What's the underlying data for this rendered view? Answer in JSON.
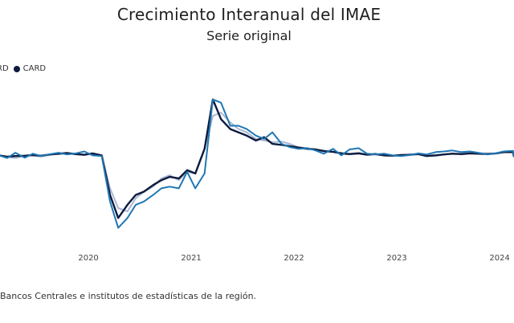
{
  "title": "Crecimiento Interanual del IMAE",
  "subtitle": "Serie original",
  "legend": {
    "items": [
      {
        "label": "RD",
        "color": "#1f77b4"
      },
      {
        "label": "CARD",
        "color": "#0d1b3e"
      }
    ]
  },
  "source": "Bancos Centrales e institutos de estadísticas de la región.",
  "chart_data": {
    "type": "line",
    "title": "Crecimiento Interanual del IMAE",
    "subtitle": "Serie original",
    "xlabel": "",
    "ylabel": "",
    "x_tick_labels": [
      "2020",
      "2021",
      "2022",
      "2023",
      "2024"
    ],
    "x_range": [
      2019.14,
      2024.14
    ],
    "y_range": [
      -22,
      28
    ],
    "grid": false,
    "legend_position": "top-left",
    "series": [
      {
        "name": "",
        "color": "#aab8d4",
        "x": [
          2019.13,
          2019.21,
          2019.29,
          2019.38,
          2019.46,
          2019.54,
          2019.63,
          2019.71,
          2019.79,
          2019.88,
          2019.96,
          2020.04,
          2020.13,
          2020.21,
          2020.29,
          2020.38,
          2020.46,
          2020.54,
          2020.63,
          2020.71,
          2020.79,
          2020.88,
          2020.96,
          2021.04,
          2021.13,
          2021.21,
          2021.29,
          2021.38,
          2021.46,
          2021.54,
          2021.63,
          2021.71,
          2021.79,
          2021.88,
          2021.96,
          2022.04,
          2022.13,
          2022.21,
          2022.29,
          2022.38,
          2022.46,
          2022.54,
          2022.63,
          2022.71,
          2022.79,
          2022.88,
          2022.96,
          2023.04,
          2023.13,
          2023.21,
          2023.29,
          2023.38,
          2023.46,
          2023.54,
          2023.63,
          2023.71,
          2023.79,
          2023.88,
          2023.96,
          2024.04,
          2024.13,
          2024.14
        ],
        "values": [
          4,
          3.5,
          3.2,
          3.8,
          4,
          3.6,
          4.2,
          4.4,
          4.6,
          4.3,
          4.1,
          4.5,
          4.0,
          -6,
          -12,
          -13,
          -9,
          -7,
          -5.5,
          -3,
          -2,
          -3.5,
          -1,
          -1.5,
          6,
          16,
          17,
          14,
          12,
          11,
          9,
          8.5,
          8,
          8.2,
          7.5,
          6.5,
          6.2,
          5.8,
          5.5,
          5,
          4.8,
          4.5,
          4.8,
          4.3,
          4.5,
          4.2,
          4.0,
          4.1,
          4.3,
          4.5,
          4.0,
          4.2,
          4.3,
          4.6,
          4.5,
          4.8,
          4.7,
          4.6,
          4.5,
          4.9,
          5.0,
          3.8
        ]
      },
      {
        "name": "CARD",
        "color": "#0d1b3e",
        "x": [
          2019.13,
          2019.21,
          2019.29,
          2019.38,
          2019.46,
          2019.54,
          2019.63,
          2019.71,
          2019.79,
          2019.88,
          2019.96,
          2020.04,
          2020.13,
          2020.21,
          2020.29,
          2020.38,
          2020.46,
          2020.54,
          2020.63,
          2020.71,
          2020.79,
          2020.88,
          2020.96,
          2021.04,
          2021.13,
          2021.21,
          2021.29,
          2021.38,
          2021.46,
          2021.54,
          2021.63,
          2021.71,
          2021.79,
          2021.88,
          2021.96,
          2022.04,
          2022.13,
          2022.21,
          2022.29,
          2022.38,
          2022.46,
          2022.54,
          2022.63,
          2022.71,
          2022.79,
          2022.88,
          2022.96,
          2023.04,
          2023.13,
          2023.21,
          2023.29,
          2023.38,
          2023.46,
          2023.54,
          2023.63,
          2023.71,
          2023.79,
          2023.88,
          2023.96,
          2024.04,
          2024.13,
          2024.14
        ],
        "values": [
          4,
          3.6,
          3.8,
          3.9,
          4.1,
          3.9,
          4.3,
          4.5,
          4.7,
          4.4,
          4.2,
          4.6,
          4.0,
          -8,
          -15,
          -11,
          -8,
          -7,
          -5,
          -3.5,
          -2.5,
          -3,
          -0.5,
          -1.5,
          6,
          21,
          15,
          12,
          11,
          10,
          8.5,
          9.5,
          7.5,
          7.2,
          6.8,
          6.4,
          6.0,
          5.8,
          5.3,
          5.1,
          4.6,
          4.4,
          4.6,
          4.2,
          4.4,
          4.0,
          3.9,
          4.1,
          4.2,
          4.4,
          3.8,
          4.0,
          4.3,
          4.5,
          4.4,
          4.6,
          4.5,
          4.4,
          4.6,
          5.0,
          5.0,
          3.5
        ]
      },
      {
        "name": "RD",
        "color": "#1f77b4",
        "x": [
          2019.13,
          2019.21,
          2019.29,
          2019.38,
          2019.46,
          2019.54,
          2019.63,
          2019.71,
          2019.79,
          2019.88,
          2019.96,
          2020.04,
          2020.13,
          2020.21,
          2020.29,
          2020.38,
          2020.46,
          2020.54,
          2020.63,
          2020.71,
          2020.79,
          2020.88,
          2020.96,
          2021.04,
          2021.13,
          2021.21,
          2021.29,
          2021.38,
          2021.46,
          2021.54,
          2021.63,
          2021.71,
          2021.79,
          2021.88,
          2021.96,
          2022.04,
          2022.13,
          2022.21,
          2022.29,
          2022.38,
          2022.46,
          2022.54,
          2022.63,
          2022.71,
          2022.79,
          2022.88,
          2022.96,
          2023.04,
          2023.13,
          2023.21,
          2023.29,
          2023.38,
          2023.46,
          2023.54,
          2023.63,
          2023.71,
          2023.79,
          2023.88,
          2023.96,
          2024.04,
          2024.13,
          2024.14
        ],
        "values": [
          4,
          3.2,
          4.8,
          3.3,
          4.5,
          3.8,
          4.4,
          4.8,
          4.3,
          4.6,
          5.2,
          4.0,
          3.8,
          -10,
          -18,
          -15,
          -11,
          -10,
          -8,
          -6,
          -5.5,
          -6,
          -1,
          -6,
          -1.5,
          21,
          20,
          13,
          13,
          12,
          10,
          9,
          11,
          7.5,
          6.5,
          6.0,
          6.2,
          5.5,
          4.5,
          6.0,
          4.0,
          5.8,
          6.2,
          4.5,
          4.3,
          4.5,
          4.0,
          3.8,
          4.1,
          4.6,
          4.3,
          5.0,
          5.2,
          5.5,
          5.0,
          5.2,
          4.8,
          4.3,
          4.6,
          5.2,
          5.4,
          3.6
        ]
      }
    ]
  }
}
